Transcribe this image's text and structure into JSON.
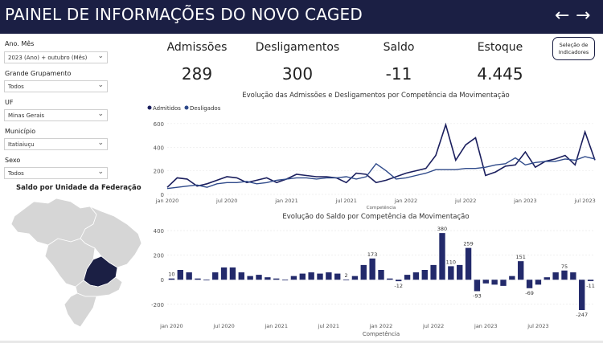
{
  "header": {
    "title": "PAINEL DE INFORMAÇÕES DO NOVO CAGED",
    "back_arrow": "←",
    "forward_arrow": "→"
  },
  "filters": [
    {
      "label": "Ano. Mês",
      "value": "2023 (Ano) + outubro (Mês)"
    },
    {
      "label": "Grande Grupamento",
      "value": "Todos"
    },
    {
      "label": "UF",
      "value": "Minas Gerais"
    },
    {
      "label": "Município",
      "value": "Itatiaiuçu"
    },
    {
      "label": "Sexo",
      "value": "Todos"
    }
  ],
  "kpis": [
    {
      "label": "Admissões",
      "value": "289"
    },
    {
      "label": "Desligamentos",
      "value": "300"
    },
    {
      "label": "Saldo",
      "value": "-11"
    },
    {
      "label": "Estoque",
      "value": "4.445"
    }
  ],
  "selector_button": {
    "line1": "Seleção de",
    "line2": "Indicadores"
  },
  "map": {
    "title": "Saldo por Unidade da Federação",
    "highlight_color": "#1b1f44",
    "base_color": "#d6d6d6"
  },
  "colors": {
    "admitidos": "#1b1f5e",
    "desligados": "#2f4a8a",
    "bar": "#232a6b"
  },
  "chart_data": [
    {
      "type": "line",
      "title": "Evolução das Admissões e Desligamentos por Competência da Movimentação",
      "xlabel": "Competência",
      "ylim": [
        0,
        640
      ],
      "yticks": [
        0,
        200,
        400,
        600
      ],
      "xtick_labels": [
        "jan 2020",
        "jul 2020",
        "jan 2021",
        "jul 2021",
        "jan 2022",
        "jul 2022",
        "jan 2023",
        "jul 2023"
      ],
      "series": [
        {
          "name": "Admitidos",
          "values": [
            60,
            140,
            130,
            70,
            90,
            120,
            150,
            140,
            100,
            120,
            140,
            100,
            130,
            170,
            160,
            150,
            150,
            140,
            100,
            180,
            170,
            100,
            120,
            150,
            180,
            200,
            220,
            330,
            590,
            290,
            420,
            480,
            160,
            190,
            240,
            250,
            360,
            230,
            280,
            300,
            330,
            250,
            530,
            290
          ]
        },
        {
          "name": "Desligados",
          "values": [
            50,
            60,
            70,
            80,
            60,
            90,
            100,
            100,
            110,
            90,
            100,
            120,
            130,
            140,
            140,
            130,
            140,
            140,
            150,
            130,
            150,
            260,
            200,
            130,
            140,
            160,
            180,
            210,
            210,
            210,
            220,
            220,
            230,
            250,
            260,
            310,
            250,
            270,
            280,
            280,
            300,
            290,
            320,
            300
          ]
        }
      ]
    },
    {
      "type": "bar",
      "title": "Evolução do Saldo por Competência da Movimentação",
      "xlabel": "Competência",
      "ylim": [
        -260,
        420
      ],
      "yticks": [
        -200,
        0,
        200,
        400
      ],
      "xtick_labels": [
        "jan 2020",
        "jul 2020",
        "jan 2021",
        "jul 2021",
        "jan 2022",
        "jul 2022",
        "jan 2023",
        "jul 2023"
      ],
      "values": [
        10,
        80,
        60,
        10,
        0,
        60,
        100,
        100,
        60,
        30,
        40,
        20,
        10,
        0,
        30,
        50,
        60,
        50,
        60,
        50,
        2,
        30,
        120,
        173,
        80,
        10,
        -12,
        40,
        60,
        80,
        120,
        380,
        110,
        120,
        259,
        -93,
        -30,
        -40,
        -50,
        30,
        151,
        -69,
        -40,
        20,
        60,
        75,
        60,
        -247,
        -11
      ],
      "data_labels": [
        {
          "index": 0,
          "text": "10"
        },
        {
          "index": 20,
          "text": "2"
        },
        {
          "index": 23,
          "text": "173"
        },
        {
          "index": 26,
          "text": "-12"
        },
        {
          "index": 31,
          "text": "380"
        },
        {
          "index": 32,
          "text": "110"
        },
        {
          "index": 34,
          "text": "259"
        },
        {
          "index": 35,
          "text": "-93"
        },
        {
          "index": 40,
          "text": "151"
        },
        {
          "index": 41,
          "text": "-69"
        },
        {
          "index": 45,
          "text": "75"
        },
        {
          "index": 47,
          "text": "-247"
        },
        {
          "index": 48,
          "text": "-11"
        }
      ]
    }
  ]
}
